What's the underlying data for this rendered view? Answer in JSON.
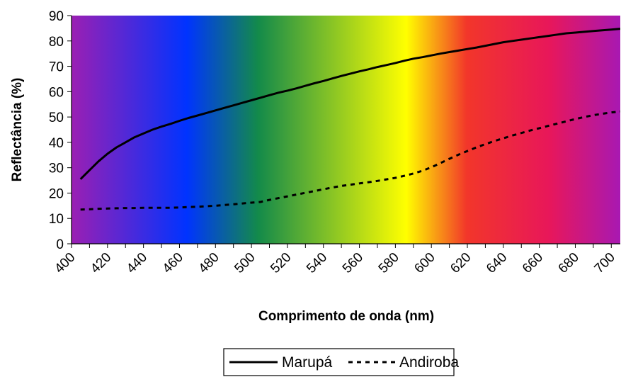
{
  "chart_data": {
    "type": "line",
    "title": "",
    "xlabel": "Comprimento de onda (nm)",
    "ylabel": "Reflectância (%)",
    "xlim": [
      400,
      705
    ],
    "ylim": [
      0,
      90
    ],
    "x_ticks": [
      400,
      420,
      440,
      460,
      480,
      500,
      520,
      540,
      560,
      580,
      600,
      620,
      640,
      660,
      680,
      700
    ],
    "y_ticks": [
      0,
      10,
      20,
      30,
      40,
      50,
      60,
      70,
      80,
      90
    ],
    "grid": false,
    "legend_position": "bottom",
    "background": "visible-spectrum gradient",
    "spectrum_colors": [
      "#9b1fb3",
      "#0033ff",
      "#138a4a",
      "#ffff00",
      "#f2362a",
      "#e8175a",
      "#a818b2"
    ],
    "x": [
      405,
      410,
      415,
      420,
      425,
      430,
      435,
      440,
      445,
      450,
      455,
      460,
      465,
      470,
      475,
      480,
      485,
      490,
      495,
      500,
      505,
      510,
      515,
      520,
      525,
      530,
      535,
      540,
      545,
      550,
      555,
      560,
      565,
      570,
      575,
      580,
      585,
      590,
      595,
      600,
      605,
      610,
      615,
      620,
      625,
      630,
      635,
      640,
      645,
      650,
      655,
      660,
      665,
      670,
      675,
      680,
      685,
      690,
      695,
      700,
      705
    ],
    "series": [
      {
        "name": "Marupá",
        "style": "solid",
        "color": "#000000",
        "values": [
          25.5,
          29,
          32.5,
          35.5,
          38,
          40,
          42,
          43.5,
          45,
          46.2,
          47.3,
          48.5,
          49.6,
          50.6,
          51.6,
          52.6,
          53.6,
          54.6,
          55.6,
          56.6,
          57.6,
          58.6,
          59.6,
          60.4,
          61.3,
          62.3,
          63.3,
          64.2,
          65.2,
          66.2,
          67.1,
          68,
          68.8,
          69.7,
          70.5,
          71.3,
          72.2,
          73,
          73.6,
          74.3,
          75,
          75.6,
          76.2,
          76.8,
          77.4,
          78.1,
          78.8,
          79.5,
          80,
          80.5,
          81,
          81.5,
          82,
          82.5,
          83,
          83.3,
          83.6,
          83.9,
          84.2,
          84.5,
          84.8
        ]
      },
      {
        "name": "Andiroba",
        "style": "dashed",
        "color": "#000000",
        "values": [
          13.5,
          13.6,
          13.8,
          13.9,
          14,
          14.1,
          14.1,
          14.2,
          14.2,
          14.2,
          14.2,
          14.3,
          14.5,
          14.6,
          14.8,
          15,
          15.3,
          15.6,
          15.9,
          16.2,
          16.5,
          17.3,
          18,
          18.7,
          19.4,
          20.1,
          20.8,
          21.5,
          22.2,
          22.8,
          23.3,
          23.8,
          24.3,
          24.8,
          25.4,
          26,
          26.8,
          27.7,
          28.8,
          30.2,
          31.8,
          33.5,
          35.1,
          36.6,
          38,
          39.3,
          40.5,
          41.6,
          42.7,
          43.7,
          44.7,
          45.6,
          46.5,
          47.4,
          48.3,
          49.2,
          50,
          50.7,
          51.3,
          51.8,
          52.2
        ]
      }
    ]
  }
}
